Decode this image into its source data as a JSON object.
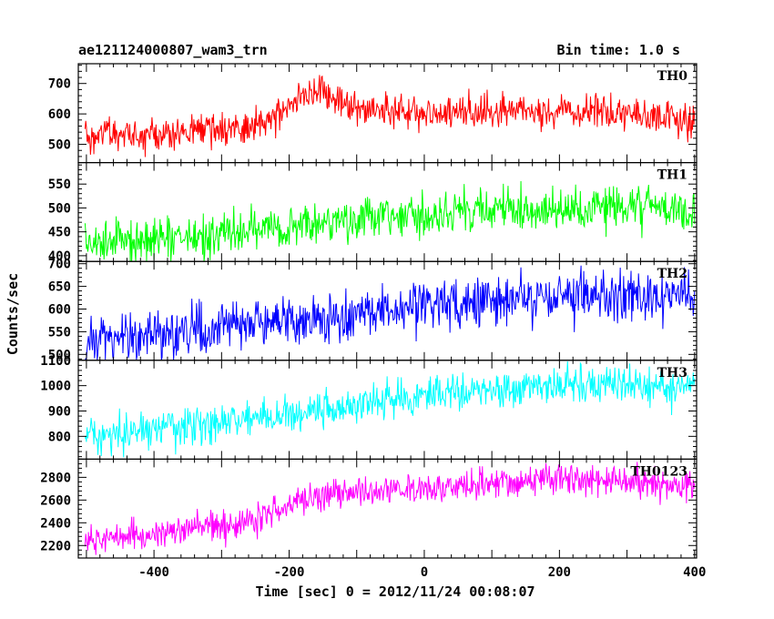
{
  "chart_data": {
    "type": "line",
    "title": "ae121124000807_wam3_trn",
    "bin_label": "Bin time: 1.0 s",
    "xlabel": "Time [sec] 0 = 2012/11/24 00:08:07",
    "ylabel": "Counts/sec",
    "xlim": [
      -512,
      403
    ],
    "x_ticks": [
      -400,
      -200,
      0,
      200,
      400
    ],
    "grid": false,
    "panels": [
      {
        "name": "TH0",
        "color": "#ff0000",
        "ylim": [
          440,
          765
        ],
        "yticks": [
          500,
          600,
          700
        ],
        "x": [
          -500,
          -450,
          -400,
          -350,
          -300,
          -250,
          -220,
          -180,
          -160,
          -130,
          -100,
          -50,
          0,
          50,
          100,
          150,
          200,
          250,
          300,
          350,
          400
        ],
        "values": [
          520,
          525,
          530,
          545,
          555,
          560,
          580,
          650,
          680,
          640,
          620,
          610,
          605,
          605,
          610,
          605,
          610,
          610,
          600,
          585,
          575
        ],
        "noise": 28
      },
      {
        "name": "TH1",
        "color": "#00ff00",
        "ylim": [
          388,
          595
        ],
        "yticks": [
          400,
          450,
          500,
          550
        ],
        "x": [
          -500,
          -400,
          -300,
          -200,
          -100,
          0,
          100,
          200,
          300,
          400
        ],
        "values": [
          425,
          435,
          445,
          462,
          475,
          487,
          495,
          500,
          502,
          500
        ],
        "noise": 23
      },
      {
        "name": "TH2",
        "color": "#0000ff",
        "ylim": [
          487,
          705
        ],
        "yticks": [
          500,
          550,
          600,
          650,
          700
        ],
        "x": [
          -500,
          -400,
          -300,
          -200,
          -100,
          0,
          100,
          200,
          300,
          400
        ],
        "values": [
          530,
          545,
          560,
          572,
          590,
          605,
          620,
          625,
          628,
          625
        ],
        "noise": 27
      },
      {
        "name": "TH3",
        "color": "#00ffff",
        "ylim": [
          710,
          1100
        ],
        "yticks": [
          800,
          900,
          1000,
          1100
        ],
        "x": [
          -500,
          -400,
          -300,
          -200,
          -100,
          0,
          100,
          200,
          300,
          400
        ],
        "values": [
          800,
          830,
          860,
          890,
          925,
          960,
          990,
          1000,
          1005,
          990
        ],
        "noise": 38
      },
      {
        "name": "TH0123",
        "color": "#ff00ff",
        "ylim": [
          2090,
          2960
        ],
        "yticks": [
          2200,
          2400,
          2600,
          2800
        ],
        "x": [
          -500,
          -400,
          -300,
          -250,
          -200,
          -150,
          -100,
          0,
          100,
          200,
          300,
          400
        ],
        "values": [
          2240,
          2300,
          2370,
          2420,
          2560,
          2650,
          2670,
          2700,
          2750,
          2780,
          2760,
          2700
        ],
        "noise": 70
      }
    ]
  }
}
